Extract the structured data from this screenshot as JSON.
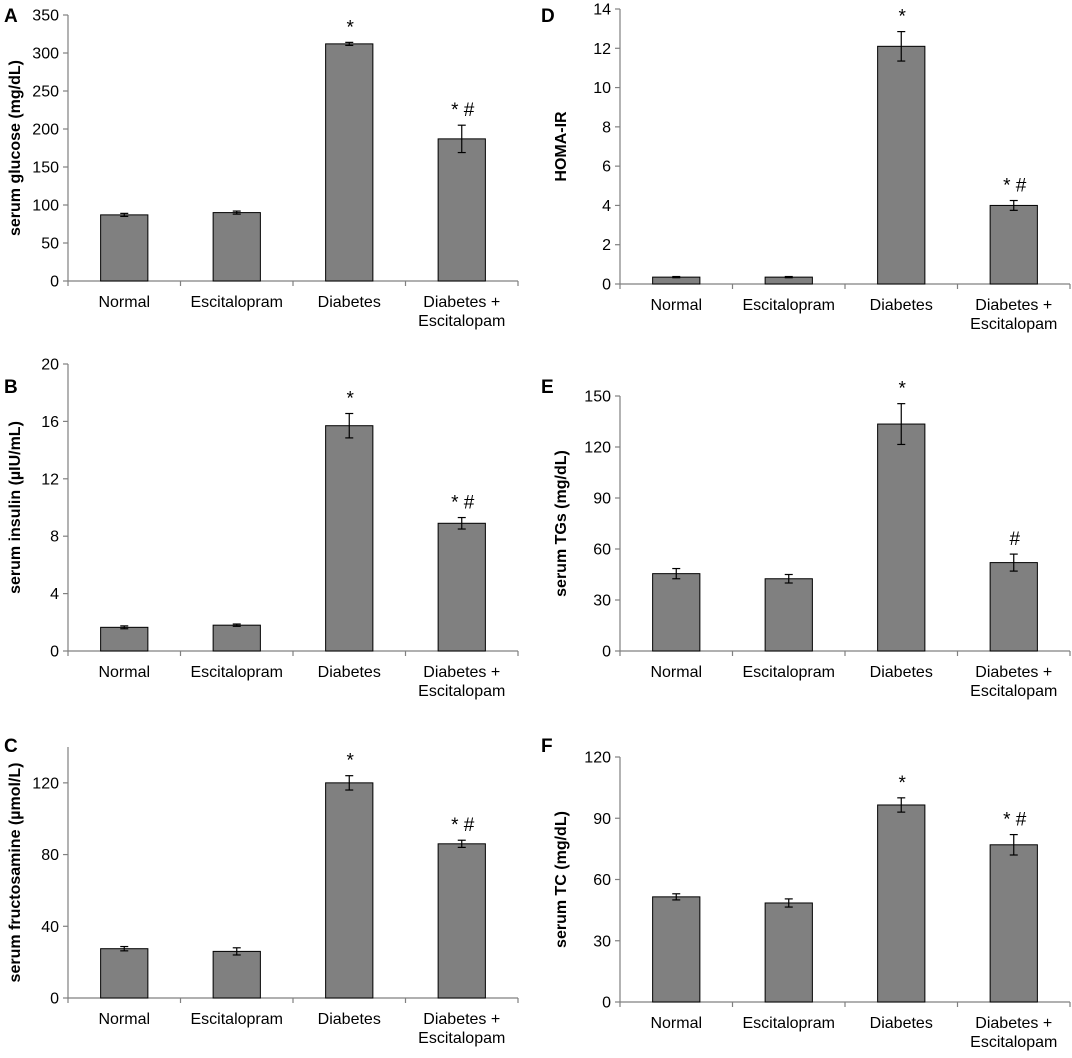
{
  "colors": {
    "bar_fill": "#808080",
    "bar_stroke": "#000000",
    "axis": "#808080"
  },
  "chart_data": [
    {
      "panel": "A",
      "type": "bar",
      "ylabel": "serum glucose (mg/dL)",
      "ylim": [
        0,
        350
      ],
      "yticks": [
        0,
        50,
        100,
        150,
        200,
        250,
        300,
        350
      ],
      "categories": [
        "Normal",
        "Escitalopram",
        "Diabetes",
        "Diabetes + Escitalopam"
      ],
      "category_lines": [
        [
          "Normal"
        ],
        [
          "Escitalopram"
        ],
        [
          "Diabetes"
        ],
        [
          "Diabetes +",
          "Escitalopam"
        ]
      ],
      "values": [
        87,
        90,
        312,
        187
      ],
      "errors": [
        2,
        2,
        2,
        18
      ],
      "annotations": [
        "",
        "",
        "*",
        "* #"
      ]
    },
    {
      "panel": "B",
      "type": "bar",
      "ylabel": "serum insulin (µIU/mL)",
      "ylim": [
        0,
        20
      ],
      "yticks": [
        0,
        4,
        8,
        12,
        16,
        20
      ],
      "categories": [
        "Normal",
        "Escitalopram",
        "Diabetes",
        "Diabetes + Escitalopam"
      ],
      "category_lines": [
        [
          "Normal"
        ],
        [
          "Escitalopram"
        ],
        [
          "Diabetes"
        ],
        [
          "Diabetes +",
          "Escitalopam"
        ]
      ],
      "values": [
        1.65,
        1.8,
        15.7,
        8.9
      ],
      "errors": [
        0.1,
        0.08,
        0.85,
        0.4
      ],
      "annotations": [
        "",
        "",
        "*",
        "* #"
      ]
    },
    {
      "panel": "C",
      "type": "bar",
      "ylabel": "serum fructosamine (µmol/L)",
      "ylim": [
        0,
        140
      ],
      "yticks": [
        0,
        40,
        80,
        120
      ],
      "categories": [
        "Normal",
        "Escitalopram",
        "Diabetes",
        "Diabetes + Escitalopam"
      ],
      "category_lines": [
        [
          "Normal"
        ],
        [
          "Escitalopram"
        ],
        [
          "Diabetes"
        ],
        [
          "Diabetes +",
          "Escitalopam"
        ]
      ],
      "values": [
        27.5,
        26,
        120,
        86
      ],
      "errors": [
        1.2,
        2,
        4,
        2
      ],
      "annotations": [
        "",
        "",
        "*",
        "* #"
      ]
    },
    {
      "panel": "D",
      "type": "bar",
      "ylabel": "HOMA-IR",
      "ylim": [
        0,
        14
      ],
      "yticks": [
        0,
        2,
        4,
        6,
        8,
        10,
        12,
        14
      ],
      "categories": [
        "Normal",
        "Escitalopram",
        "Diabetes",
        "Diabetes + Escitalopam"
      ],
      "category_lines": [
        [
          "Normal"
        ],
        [
          "Escitalopram"
        ],
        [
          "Diabetes"
        ],
        [
          "Diabetes +",
          "Escitalopam"
        ]
      ],
      "values": [
        0.35,
        0.35,
        12.1,
        4.0
      ],
      "errors": [
        0.03,
        0.03,
        0.75,
        0.25
      ],
      "annotations": [
        "",
        "",
        "*",
        "* #"
      ]
    },
    {
      "panel": "E",
      "type": "bar",
      "ylabel": "serum TGs (mg/dL)",
      "ylim": [
        0,
        150
      ],
      "yticks": [
        0,
        30,
        60,
        90,
        120,
        150
      ],
      "categories": [
        "Normal",
        "Escitalopram",
        "Diabetes",
        "Diabetes + Escitalopam"
      ],
      "category_lines": [
        [
          "Normal"
        ],
        [
          "Escitalopram"
        ],
        [
          "Diabetes"
        ],
        [
          "Diabetes +",
          "Escitalopam"
        ]
      ],
      "values": [
        45.5,
        42.5,
        133.5,
        52
      ],
      "errors": [
        3,
        2.5,
        12,
        5
      ],
      "annotations": [
        "",
        "",
        "*",
        "#"
      ]
    },
    {
      "panel": "F",
      "type": "bar",
      "ylabel": "serum TC (mg/dL)",
      "ylim": [
        0,
        120
      ],
      "yticks": [
        0,
        30,
        60,
        90,
        120
      ],
      "categories": [
        "Normal",
        "Escitalopram",
        "Diabetes",
        "Diabetes + Escitalopam"
      ],
      "category_lines": [
        [
          "Normal"
        ],
        [
          "Escitalopram"
        ],
        [
          "Diabetes"
        ],
        [
          "Diabetes +",
          "Escitalopam"
        ]
      ],
      "values": [
        51.5,
        48.5,
        96.5,
        77
      ],
      "errors": [
        1.5,
        2,
        3.5,
        5
      ],
      "annotations": [
        "",
        "",
        "*",
        "* #"
      ]
    }
  ]
}
